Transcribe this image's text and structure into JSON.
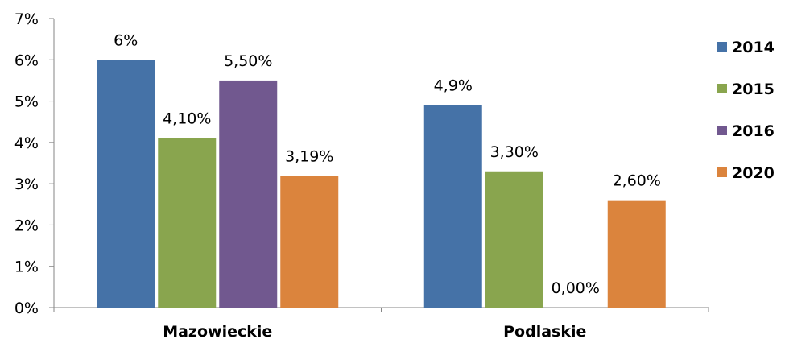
{
  "chart_data": {
    "type": "bar",
    "categories": [
      "Mazowieckie",
      "Podlaskie"
    ],
    "ylim": [
      0,
      7
    ],
    "y_ticks": [
      {
        "value": 0,
        "label": "0%"
      },
      {
        "value": 1,
        "label": "1%"
      },
      {
        "value": 2,
        "label": "2%"
      },
      {
        "value": 3,
        "label": "3%"
      },
      {
        "value": 4,
        "label": "4%"
      },
      {
        "value": 5,
        "label": "5%"
      },
      {
        "value": 6,
        "label": "6%"
      },
      {
        "value": 7,
        "label": "7%"
      }
    ],
    "series": [
      {
        "name": "2014",
        "color": "#4572a7",
        "values": [
          6,
          4.9
        ],
        "labels": [
          "6%",
          "4,9%"
        ]
      },
      {
        "name": "2015",
        "color": "#89a54e",
        "values": [
          4.1,
          3.3
        ],
        "labels": [
          "4,10%",
          "3,30%"
        ]
      },
      {
        "name": "2016",
        "color": "#71588f",
        "values": [
          5.5,
          0
        ],
        "labels": [
          "5,50%",
          "0,00%"
        ]
      },
      {
        "name": "2020",
        "color": "#db843d",
        "values": [
          3.19,
          2.6
        ],
        "labels": [
          "3,19%",
          "2,60%"
        ]
      }
    ],
    "legend_position": "right",
    "grid": false
  }
}
